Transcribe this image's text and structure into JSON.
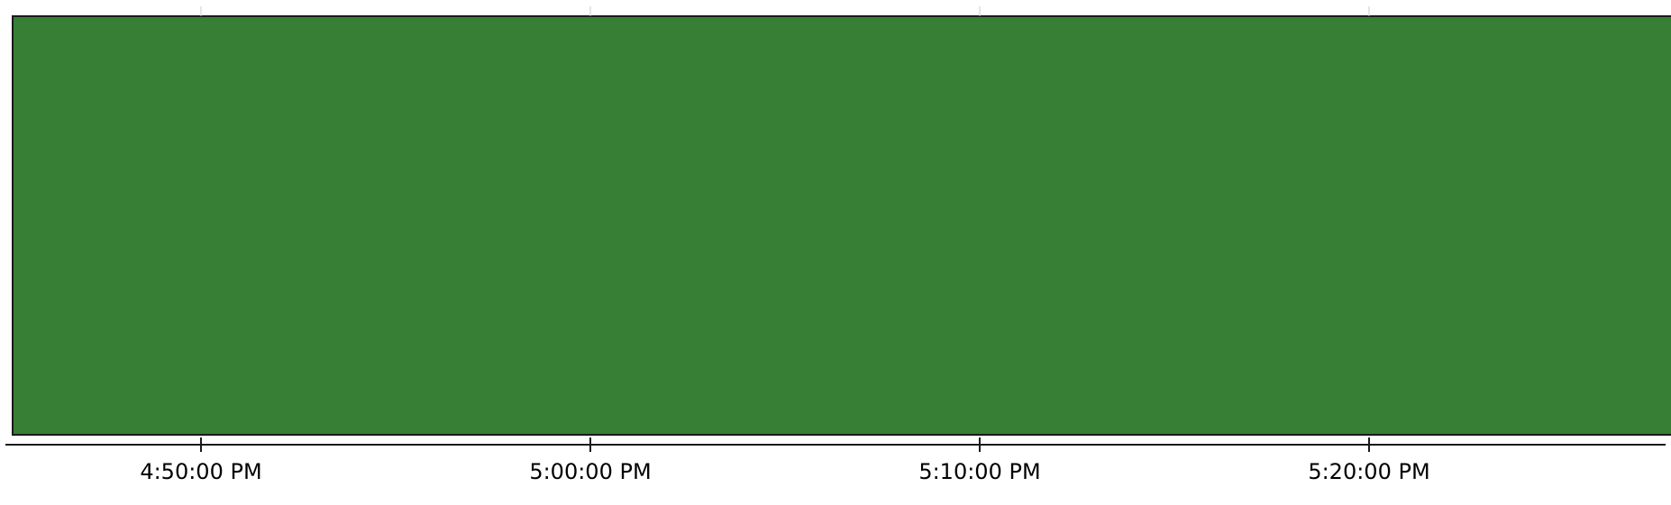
{
  "chart_data": {
    "type": "area",
    "title": "",
    "xlabel": "",
    "ylabel": "",
    "x_axis": {
      "kind": "time",
      "range": [
        "4:45:00 PM",
        "5:28:30 PM"
      ],
      "tick_labels": [
        "4:50:00 PM",
        "5:00:00 PM",
        "5:10:00 PM",
        "5:20:00 PM"
      ],
      "grid": false
    },
    "y_axis": {
      "visible": false,
      "ylim": [
        0,
        1
      ]
    },
    "legend": "none",
    "series": [
      {
        "color": "#1f3fb0",
        "start": "4:45:00 PM",
        "end": "4:45:06 PM",
        "value": 1
      },
      {
        "color": "#367f35",
        "start": "4:45:06 PM",
        "end": "5:28:30 PM",
        "value": 1
      }
    ]
  }
}
